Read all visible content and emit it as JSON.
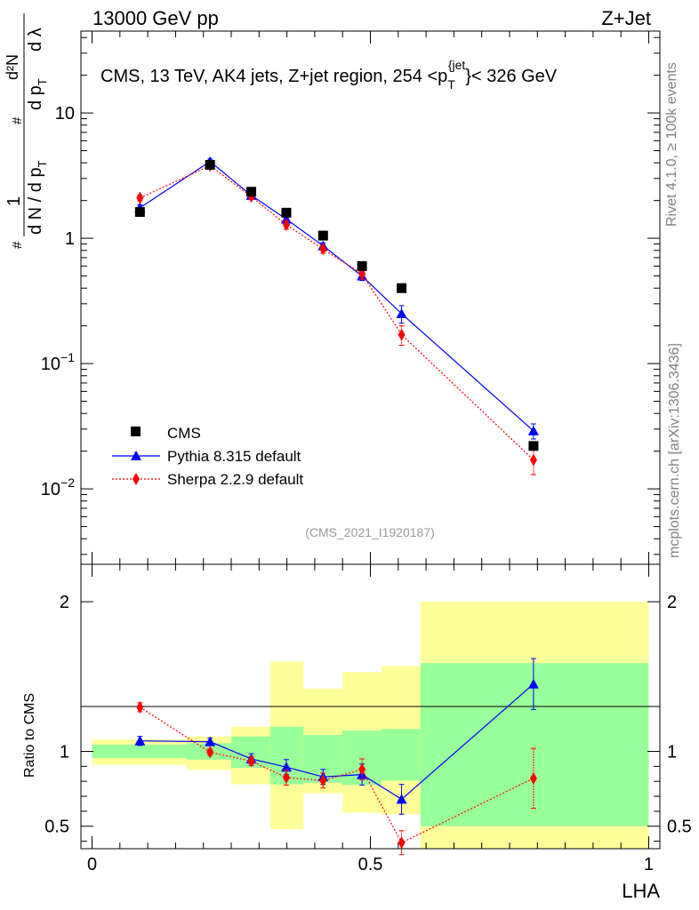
{
  "header": {
    "left": "13000 GeV pp",
    "right": "Z+Jet"
  },
  "side_labels": {
    "top": "Rivet 4.1.0, ≥ 100k events",
    "bottom": "mcplots.cern.ch [arXiv:1306.3436]"
  },
  "analysis_tag": "(CMS_2021_I1920187)",
  "chart_data": [
    {
      "type": "scatter",
      "panel": "main",
      "title": "CMS, 13 TeV, AK4 jets, Z+jet region, 254 <p_T^{jet}< 326 GeV",
      "title_parts": {
        "before": "CMS, 13 TeV, AK4 jets, Z+jet region, 254 <p",
        "sub": "T",
        "sup": "{jet",
        "after": "}< 326 GeV"
      },
      "ylabel": "1/(dN/dp_T) · d²N/(dp_T dλ)",
      "ylabel_parts": {
        "hash": "#",
        "one": "1",
        "dn": "d N / d p",
        "d2n": "d²N",
        "dpt": "d p",
        "dl": "d λ",
        "T": "T"
      },
      "xlabel": "LHA",
      "yscale": "log",
      "ylim": [
        0.0025,
        45
      ],
      "xlim": [
        -0.02,
        1.02
      ],
      "yticks": [
        {
          "value": 10,
          "label": "10"
        },
        {
          "value": 1,
          "label": "1"
        },
        {
          "value": 0.1,
          "base": "10",
          "exp": "−1"
        },
        {
          "value": 0.01,
          "base": "10",
          "exp": "−2"
        }
      ],
      "legend": {
        "placement": "bottom-left",
        "entries": [
          "CMS",
          "Pythia 8.315 default",
          "Sherpa 2.2.9 default"
        ]
      },
      "series": [
        {
          "name": "CMS",
          "color": "#000000",
          "marker": "square",
          "x": [
            0.086,
            0.212,
            0.286,
            0.349,
            0.415,
            0.485,
            0.556,
            0.793
          ],
          "y": [
            1.62,
            3.85,
            2.35,
            1.6,
            1.05,
            0.6,
            0.4,
            0.022
          ]
        },
        {
          "name": "Pythia 8.315 default",
          "color": "#0000ff",
          "marker": "triangle",
          "line": "solid",
          "x": [
            0.086,
            0.212,
            0.286,
            0.349,
            0.415,
            0.485,
            0.556,
            0.793
          ],
          "y": [
            1.75,
            4.1,
            2.2,
            1.42,
            0.87,
            0.5,
            0.25,
            0.029
          ],
          "err": [
            0.1,
            0.2,
            0.1,
            0.08,
            0.05,
            0.04,
            0.04,
            0.004
          ]
        },
        {
          "name": "Sherpa 2.2.9 default",
          "color": "#ff0000",
          "marker": "diamond",
          "line": "dotted",
          "x": [
            0.086,
            0.212,
            0.286,
            0.349,
            0.415,
            0.485,
            0.556,
            0.793
          ],
          "y": [
            2.1,
            3.8,
            2.15,
            1.28,
            0.82,
            0.52,
            0.17,
            0.017
          ],
          "err": [
            0.1,
            0.2,
            0.1,
            0.1,
            0.06,
            0.05,
            0.03,
            0.004
          ]
        }
      ]
    },
    {
      "type": "scatter",
      "panel": "ratio",
      "ylabel": "Ratio to CMS",
      "xlabel": "LHA",
      "ylim": [
        0.35,
        2.25
      ],
      "xlim": [
        -0.02,
        1.02
      ],
      "xticks": [
        {
          "value": 0,
          "label": "0"
        },
        {
          "value": 0.5,
          "label": "0.5"
        },
        {
          "value": 1,
          "label": "1"
        }
      ],
      "yticks": [
        {
          "value": 0.5,
          "label": "0.5"
        },
        {
          "value": 1,
          "label": "1"
        },
        {
          "value": 2,
          "label": "2"
        }
      ],
      "uncertainty_bands": {
        "stat_color": "#99ff99",
        "total_color": "#ffff99",
        "bins": [
          {
            "lo": 0.0,
            "hi": 0.17,
            "stat": [
              0.955,
              1.045
            ],
            "total": [
              0.91,
              1.08
            ]
          },
          {
            "lo": 0.17,
            "hi": 0.25,
            "stat": [
              0.945,
              1.055
            ],
            "total": [
              0.875,
              1.1
            ]
          },
          {
            "lo": 0.25,
            "hi": 0.32,
            "stat": [
              0.89,
              1.1
            ],
            "total": [
              0.78,
              1.165
            ]
          },
          {
            "lo": 0.32,
            "hi": 0.38,
            "stat": [
              0.78,
              1.165
            ],
            "total": [
              0.48,
              1.6
            ]
          },
          {
            "lo": 0.38,
            "hi": 0.45,
            "stat": [
              0.79,
              1.11
            ],
            "total": [
              0.72,
              1.42
            ]
          },
          {
            "lo": 0.45,
            "hi": 0.52,
            "stat": [
              0.775,
              1.14
            ],
            "total": [
              0.59,
              1.53
            ]
          },
          {
            "lo": 0.52,
            "hi": 0.59,
            "stat": [
              0.805,
              1.15
            ],
            "total": [
              0.58,
              1.57
            ]
          },
          {
            "lo": 0.59,
            "hi": 1.0,
            "stat": [
              0.5,
              1.59
            ],
            "total": [
              0.35,
              2.0
            ]
          }
        ]
      },
      "series": [
        {
          "name": "Pythia 8.315 default",
          "color": "#0000ff",
          "marker": "triangle",
          "line": "solid",
          "x": [
            0.086,
            0.212,
            0.286,
            0.349,
            0.415,
            0.485,
            0.556,
            0.793
          ],
          "y": [
            1.07,
            1.065,
            0.95,
            0.895,
            0.83,
            0.845,
            0.68,
            1.45
          ],
          "err": [
            0.03,
            0.025,
            0.035,
            0.05,
            0.05,
            0.07,
            0.1,
            0.17
          ]
        },
        {
          "name": "Sherpa 2.2.9 default",
          "color": "#ff0000",
          "marker": "diamond",
          "line": "dotted",
          "x": [
            0.086,
            0.212,
            0.286,
            0.349,
            0.415,
            0.485,
            0.556,
            0.793
          ],
          "y": [
            1.295,
            0.995,
            0.935,
            0.825,
            0.805,
            0.88,
            0.39,
            0.82
          ],
          "err": [
            0.03,
            0.02,
            0.03,
            0.05,
            0.05,
            0.07,
            0.08,
            0.2
          ]
        }
      ]
    }
  ]
}
